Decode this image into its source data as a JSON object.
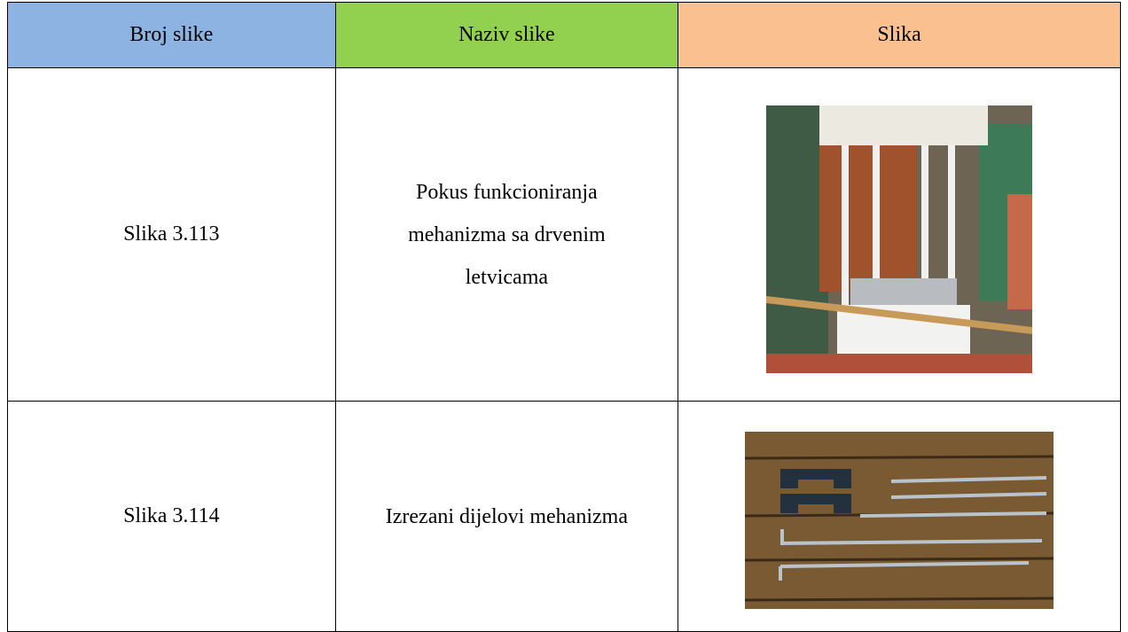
{
  "table": {
    "header": [
      "Broj slike",
      "Naziv slike",
      "Slika"
    ],
    "rows": [
      [
        "Slika 3.113",
        "Pokus funkcioniranja mehanizma sa drvenim letvicama"
      ],
      [
        "Slika 3.114",
        "Izrezani dijelovi mehanizma"
      ]
    ]
  }
}
